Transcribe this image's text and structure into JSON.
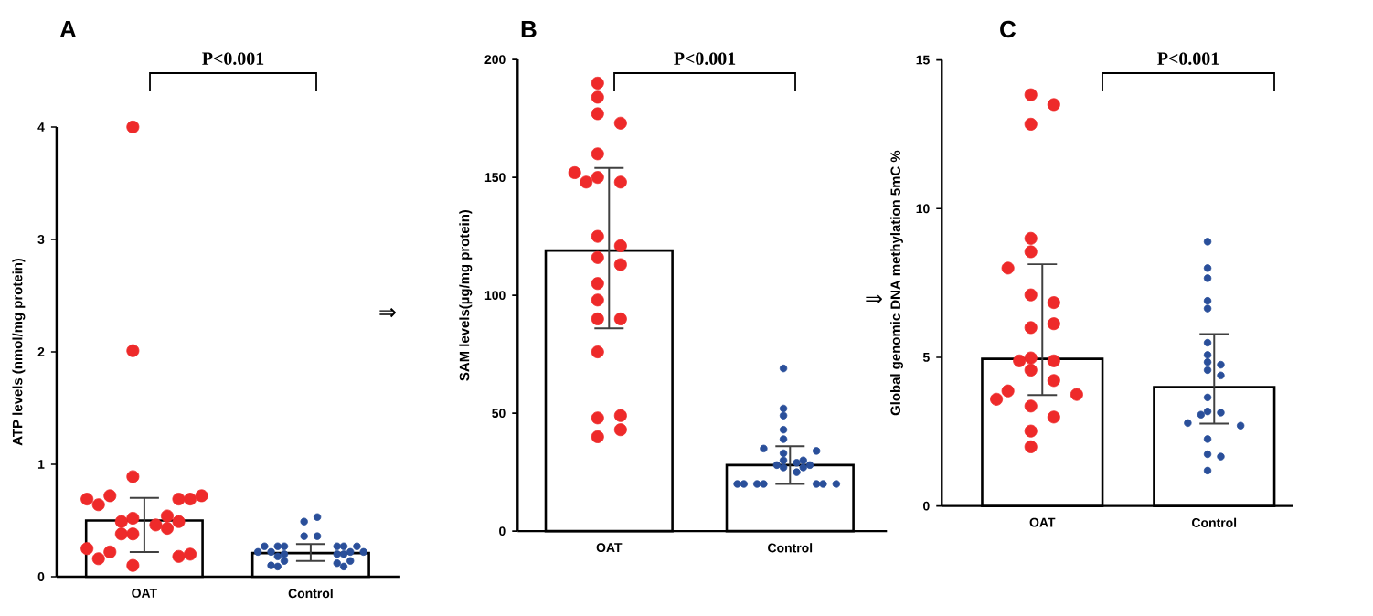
{
  "chart_data": [
    {
      "type": "bar",
      "title": "A",
      "ylabel": "ATP levels (nmol/mg protein)",
      "categories": [
        "OAT",
        "Control"
      ],
      "ylim": [
        0,
        4
      ],
      "yticks": [
        0,
        1,
        2,
        3,
        4
      ],
      "marker": "circle",
      "annotations": [
        "P<0.001",
        "⇒"
      ],
      "series": [
        {
          "type": "bar",
          "color": "#ffffff",
          "values": [
            0.5,
            0.21
          ],
          "errors": [
            [
              0.22,
              0.7
            ],
            [
              0.14,
              0.29
            ]
          ]
        },
        {
          "type": "scatter",
          "color": "#ee2a2a",
          "x": [
            "OAT",
            "OAT",
            "OAT",
            "OAT",
            "OAT",
            "OAT",
            "OAT",
            "OAT",
            "OAT",
            "OAT",
            "OAT",
            "OAT",
            "OAT",
            "OAT",
            "OAT",
            "OAT",
            "OAT",
            "OAT",
            "OAT",
            "OAT",
            "OAT",
            "OAT",
            "OAT"
          ],
          "values": [
            4.0,
            2.01,
            0.89,
            0.72,
            0.69,
            0.64,
            0.69,
            0.69,
            0.72,
            0.52,
            0.46,
            0.49,
            0.38,
            0.38,
            0.43,
            0.49,
            0.54,
            0.22,
            0.18,
            0.1,
            0.16,
            0.2,
            0.25
          ]
        },
        {
          "type": "scatter",
          "color": "#2a4f9a",
          "x": [
            "Control",
            "Control",
            "Control",
            "Control",
            "Control",
            "Control",
            "Control",
            "Control",
            "Control",
            "Control",
            "Control",
            "Control",
            "Control",
            "Control",
            "Control",
            "Control",
            "Control",
            "Control",
            "Control",
            "Control",
            "Control",
            "Control",
            "Control",
            "Control"
          ],
          "values": [
            0.49,
            0.53,
            0.36,
            0.36,
            0.27,
            0.27,
            0.27,
            0.27,
            0.27,
            0.27,
            0.22,
            0.22,
            0.2,
            0.2,
            0.22,
            0.22,
            0.14,
            0.12,
            0.09,
            0.09,
            0.1,
            0.14,
            0.18,
            0.2
          ]
        }
      ]
    },
    {
      "type": "bar",
      "title": "B",
      "ylabel": "SAM levels(µg/mg protein)",
      "categories": [
        "OAT",
        "Control"
      ],
      "ylim": [
        0,
        200
      ],
      "yticks": [
        0,
        50,
        100,
        150,
        200
      ],
      "marker": "circle",
      "annotations": [
        "P<0.001",
        "⇒"
      ],
      "series": [
        {
          "type": "bar",
          "color": "#ffffff",
          "values": [
            119,
            28
          ],
          "errors": [
            [
              86,
              154
            ],
            [
              20,
              36
            ]
          ]
        },
        {
          "type": "scatter",
          "color": "#ee2a2a",
          "x": [
            "OAT",
            "OAT",
            "OAT",
            "OAT",
            "OAT",
            "OAT",
            "OAT",
            "OAT",
            "OAT",
            "OAT",
            "OAT",
            "OAT",
            "OAT",
            "OAT",
            "OAT",
            "OAT",
            "OAT",
            "OAT",
            "OAT",
            "OAT",
            "OAT",
            "OAT"
          ],
          "values": [
            190,
            184,
            177,
            173,
            160,
            150,
            152,
            148,
            148,
            125,
            121,
            116,
            113,
            105,
            98,
            90,
            90,
            76,
            48,
            49,
            40,
            43
          ]
        },
        {
          "type": "scatter",
          "color": "#2a4f9a",
          "x": [
            "Control",
            "Control",
            "Control",
            "Control",
            "Control",
            "Control",
            "Control",
            "Control",
            "Control",
            "Control",
            "Control",
            "Control",
            "Control",
            "Control",
            "Control",
            "Control",
            "Control",
            "Control",
            "Control",
            "Control",
            "Control",
            "Control",
            "Control"
          ],
          "values": [
            69,
            52,
            49,
            43,
            39,
            35,
            33,
            34,
            30,
            29,
            28,
            27,
            25,
            20,
            20,
            20,
            20,
            20,
            20,
            20,
            30,
            28,
            27
          ]
        }
      ]
    },
    {
      "type": "bar",
      "title": "C",
      "ylabel": "Global  genomic DNA methylation 5mC %",
      "categories": [
        "OAT",
        "Control"
      ],
      "ylim": [
        0,
        15
      ],
      "yticks": [
        0,
        5,
        10,
        15
      ],
      "marker": "circle",
      "annotations": [
        "P<0.001"
      ],
      "series": [
        {
          "type": "bar",
          "color": "#ffffff",
          "values": [
            4.95,
            4.0
          ],
          "errors": [
            [
              3.73,
              8.13
            ],
            [
              2.77,
              5.78
            ]
          ]
        },
        {
          "type": "scatter",
          "color": "#ee2a2a",
          "x": [
            "OAT",
            "OAT",
            "OAT",
            "OAT",
            "OAT",
            "OAT",
            "OAT",
            "OAT",
            "OAT",
            "OAT",
            "OAT",
            "OAT",
            "OAT",
            "OAT",
            "OAT",
            "OAT",
            "OAT",
            "OAT",
            "OAT",
            "OAT",
            "OAT",
            "OAT"
          ],
          "values": [
            13.83,
            13.5,
            12.84,
            9.0,
            8.55,
            8.0,
            7.1,
            6.84,
            6.0,
            6.13,
            4.98,
            4.88,
            4.88,
            4.57,
            4.22,
            3.87,
            3.75,
            3.59,
            3.36,
            2.99,
            2.52,
            1.99
          ]
        },
        {
          "type": "scatter",
          "color": "#2a4f9a",
          "x": [
            "Control",
            "Control",
            "Control",
            "Control",
            "Control",
            "Control",
            "Control",
            "Control",
            "Control",
            "Control",
            "Control",
            "Control",
            "Control",
            "Control",
            "Control",
            "Control",
            "Control",
            "Control",
            "Control",
            "Control",
            "Control"
          ],
          "values": [
            8.89,
            8.0,
            7.66,
            6.9,
            6.64,
            5.49,
            4.84,
            5.08,
            4.57,
            4.39,
            4.75,
            3.65,
            3.18,
            3.14,
            3.07,
            2.79,
            2.7,
            2.25,
            1.74,
            1.66,
            1.19
          ]
        }
      ]
    }
  ]
}
